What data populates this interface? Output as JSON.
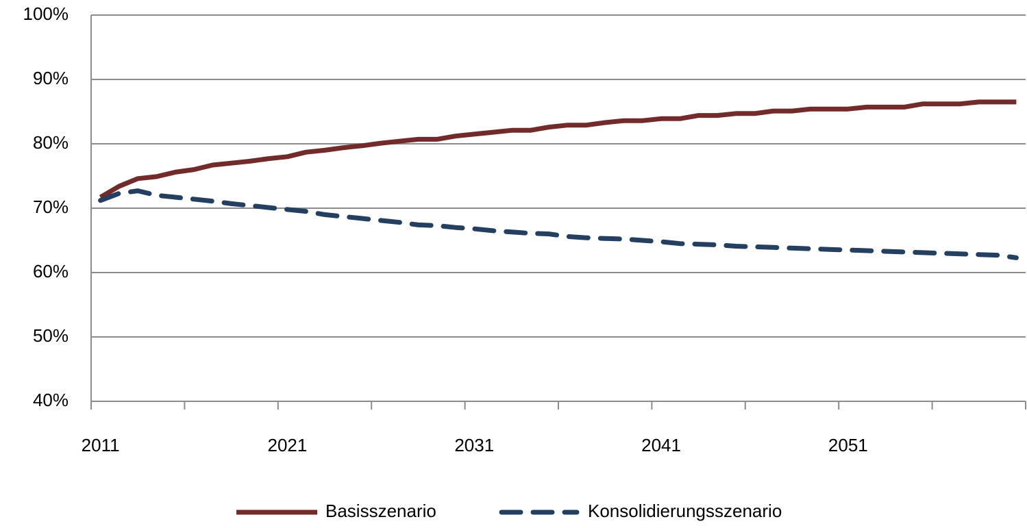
{
  "chart_data": {
    "type": "line",
    "categories": [
      "2011",
      null,
      null,
      null,
      null,
      null,
      null,
      null,
      null,
      null,
      "2021",
      null,
      null,
      null,
      null,
      null,
      null,
      null,
      null,
      null,
      "2031",
      null,
      null,
      null,
      null,
      null,
      null,
      null,
      null,
      null,
      "2041",
      null,
      null,
      null,
      null,
      null,
      null,
      null,
      null,
      null,
      "2051",
      null,
      null,
      null,
      null,
      null,
      null,
      null,
      null,
      null
    ],
    "series": [
      {
        "name": "Basisszenario",
        "color": "#722a2a",
        "dashed": false,
        "values": [
          71.7,
          73.4,
          74.6,
          74.9,
          75.6,
          76.0,
          76.7,
          77.0,
          77.3,
          77.7,
          78.0,
          78.7,
          79.0,
          79.4,
          79.7,
          80.1,
          80.4,
          80.7,
          80.7,
          81.2,
          81.5,
          81.8,
          82.1,
          82.1,
          82.6,
          82.9,
          82.9,
          83.3,
          83.6,
          83.6,
          83.9,
          83.9,
          84.4,
          84.4,
          84.7,
          84.7,
          85.1,
          85.1,
          85.4,
          85.4,
          85.4,
          85.7,
          85.7,
          85.7,
          86.2,
          86.2,
          86.2,
          86.5,
          86.5,
          86.5
        ]
      },
      {
        "name": "Konsolidierungsszenario",
        "color": "#243f60",
        "dashed": true,
        "values": [
          71.2,
          72.3,
          72.7,
          72.0,
          71.7,
          71.4,
          71.1,
          70.7,
          70.4,
          70.1,
          69.8,
          69.5,
          69.0,
          68.7,
          68.4,
          68.1,
          67.8,
          67.4,
          67.3,
          67.0,
          66.8,
          66.5,
          66.3,
          66.1,
          66.0,
          65.6,
          65.4,
          65.3,
          65.2,
          65.0,
          64.8,
          64.5,
          64.4,
          64.3,
          64.1,
          64.0,
          63.9,
          63.8,
          63.7,
          63.6,
          63.5,
          63.4,
          63.3,
          63.2,
          63.1,
          63.0,
          62.9,
          62.8,
          62.7,
          62.3
        ]
      }
    ],
    "ylim": [
      40,
      100
    ],
    "yticks": [
      {
        "value": 40,
        "label": "40%"
      },
      {
        "value": 50,
        "label": "50%"
      },
      {
        "value": 60,
        "label": "60%"
      },
      {
        "value": 70,
        "label": "70%"
      },
      {
        "value": 80,
        "label": "80%"
      },
      {
        "value": 90,
        "label": "90%"
      },
      {
        "value": 100,
        "label": "100%"
      }
    ],
    "grid": true,
    "legend": "bottom"
  }
}
